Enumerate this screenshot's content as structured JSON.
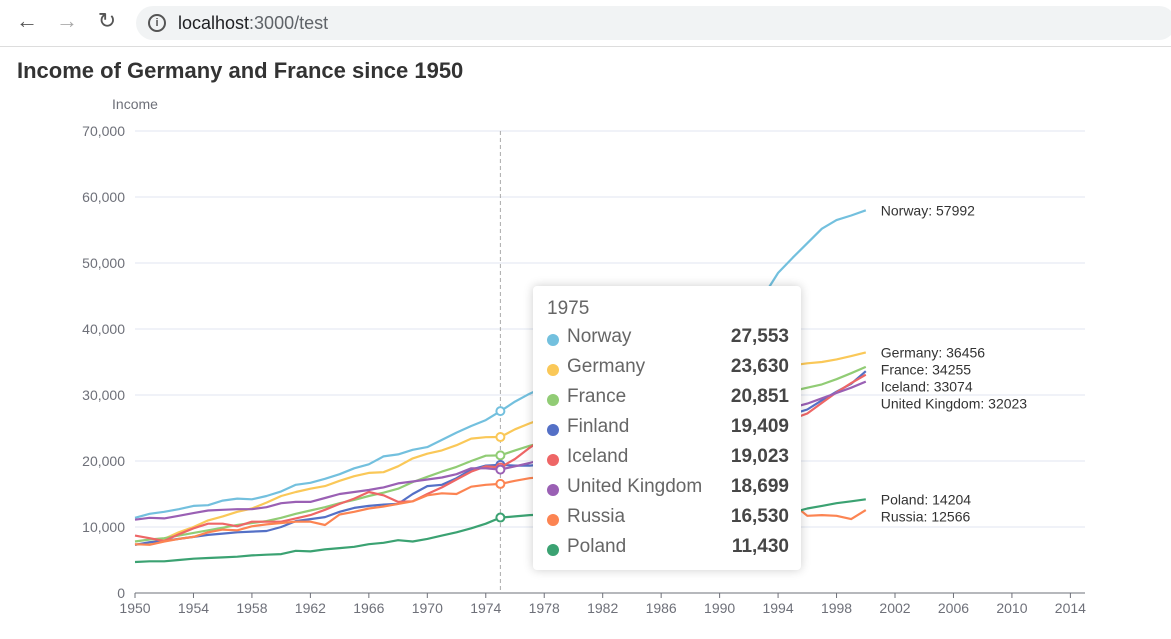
{
  "browser": {
    "url_host": "localhost",
    "url_path": ":3000/test"
  },
  "chart_data": {
    "type": "line",
    "title": "Income of Germany and France since 1950",
    "ylabel": "Income",
    "xlabel": "",
    "x_start": 1950,
    "x_end": 2015,
    "x_tick_labels": [
      "1950",
      "1954",
      "1958",
      "1962",
      "1966",
      "1970",
      "1974",
      "1978",
      "1982",
      "1986",
      "1990",
      "1994",
      "1998",
      "2002",
      "2006",
      "2010",
      "2014"
    ],
    "y_tick_labels": [
      "0",
      "10,000",
      "20,000",
      "30,000",
      "40,000",
      "50,000",
      "60,000",
      "70,000"
    ],
    "ylim": [
      0,
      70000
    ],
    "grid": true,
    "series": [
      {
        "name": "Norway",
        "color": "#73c0de",
        "end_label": "Norway: 57992",
        "values": [
          11400,
          12000,
          12300,
          12700,
          13200,
          13300,
          14000,
          14300,
          14200,
          14700,
          15400,
          16400,
          16700,
          17300,
          18000,
          18900,
          19500,
          20700,
          21000,
          21700,
          22100,
          23200,
          24300,
          25300,
          26200,
          27553,
          29000,
          30200,
          31200,
          32000,
          32800,
          33500,
          34000,
          34800,
          35500,
          36200,
          37000,
          37800,
          38300,
          38700,
          39200,
          40500,
          42000,
          45000,
          48500,
          50800,
          53000,
          55200,
          56500,
          57200,
          57992
        ]
      },
      {
        "name": "Germany",
        "color": "#fac858",
        "end_label": "Germany: 36456",
        "values": [
          7300,
          7600,
          8200,
          9200,
          10000,
          11000,
          11600,
          12300,
          12800,
          13700,
          14700,
          15300,
          15800,
          16200,
          17000,
          17700,
          18200,
          18300,
          19200,
          20400,
          21100,
          21600,
          22400,
          23400,
          23600,
          23630,
          24800,
          25700,
          26500,
          27200,
          27700,
          27800,
          27900,
          28400,
          29000,
          29700,
          30300,
          30900,
          31600,
          32300,
          33000,
          33500,
          33700,
          33400,
          34000,
          34500,
          34800,
          35000,
          35400,
          35900,
          36456
        ]
      },
      {
        "name": "France",
        "color": "#91cc75",
        "end_label": "France: 34255",
        "values": [
          7800,
          8100,
          8300,
          8700,
          9100,
          9500,
          9900,
          10300,
          10600,
          10900,
          11400,
          12000,
          12500,
          13000,
          13600,
          14100,
          14700,
          15200,
          15800,
          16800,
          17600,
          18400,
          19100,
          20000,
          20800,
          20851,
          21600,
          22300,
          22900,
          23700,
          24000,
          24200,
          24500,
          24700,
          25200,
          25800,
          26300,
          27000,
          28000,
          28800,
          29300,
          29500,
          29700,
          29600,
          30100,
          30600,
          31100,
          31600,
          32400,
          33300,
          34255
        ]
      },
      {
        "name": "Finland",
        "color": "#5470c6",
        "end_label": "",
        "values": [
          7300,
          7700,
          7900,
          8200,
          8500,
          8800,
          9000,
          9200,
          9300,
          9400,
          10000,
          10900,
          11200,
          11500,
          12300,
          12900,
          13200,
          13400,
          13500,
          15000,
          16200,
          16400,
          17400,
          18700,
          19300,
          19409,
          19300,
          19300,
          19500,
          20500,
          21500,
          22000,
          22300,
          22800,
          23500,
          24000,
          24500,
          25300,
          26400,
          27300,
          27400,
          25800,
          25200,
          25200,
          26200,
          27100,
          27800,
          29200,
          30500,
          31700,
          33600
        ]
      },
      {
        "name": "Iceland",
        "color": "#ee6666",
        "end_label": "Iceland: 33074",
        "values": [
          8700,
          8300,
          7900,
          8900,
          9800,
          10500,
          10500,
          10100,
          10800,
          10800,
          10800,
          11300,
          11800,
          12600,
          13500,
          14300,
          15300,
          14800,
          13800,
          13900,
          15000,
          16000,
          17200,
          18400,
          19200,
          19023,
          20300,
          22000,
          23500,
          24200,
          24600,
          24800,
          24400,
          23400,
          23500,
          24000,
          25000,
          26300,
          26000,
          25800,
          26100,
          26000,
          25200,
          25300,
          26100,
          26400,
          27200,
          28800,
          30400,
          31800,
          33074
        ]
      },
      {
        "name": "United Kingdom",
        "color": "#9a60b4",
        "end_label": "United Kingdom: 32023",
        "values": [
          11100,
          11400,
          11300,
          11700,
          12100,
          12500,
          12600,
          12700,
          12700,
          13000,
          13600,
          13800,
          13800,
          14400,
          15000,
          15300,
          15600,
          16000,
          16600,
          16900,
          17200,
          17500,
          18000,
          18900,
          18900,
          18699,
          19200,
          19700,
          20300,
          20800,
          20500,
          20300,
          20700,
          21400,
          22000,
          22800,
          23500,
          24500,
          25600,
          26100,
          26200,
          25800,
          25800,
          26400,
          27400,
          28100,
          28700,
          29500,
          30300,
          31100,
          32023
        ]
      },
      {
        "name": "Russia",
        "color": "#fc8452",
        "end_label": "Russia: 12566",
        "values": [
          7400,
          7300,
          7800,
          8200,
          8500,
          9200,
          9600,
          9500,
          10100,
          10400,
          10600,
          10800,
          10800,
          10300,
          11900,
          12300,
          12800,
          13100,
          13500,
          13900,
          14800,
          15100,
          15000,
          16100,
          16400,
          16530,
          17000,
          17400,
          17600,
          17700,
          17900,
          18000,
          18200,
          18500,
          18800,
          19000,
          19200,
          19500,
          19900,
          19800,
          19400,
          18200,
          16200,
          15600,
          14100,
          13500,
          11700,
          11800,
          11700,
          11200,
          12566
        ]
      },
      {
        "name": "Poland",
        "color": "#3ba272",
        "end_label": "Poland: 14204",
        "values": [
          4700,
          4800,
          4800,
          5000,
          5200,
          5300,
          5400,
          5500,
          5700,
          5800,
          5900,
          6400,
          6300,
          6600,
          6800,
          7000,
          7400,
          7600,
          8000,
          7800,
          8200,
          8700,
          9200,
          9800,
          10500,
          11430,
          11600,
          11800,
          11900,
          12000,
          11800,
          11000,
          10800,
          11100,
          11600,
          11900,
          12100,
          12000,
          12400,
          12500,
          11300,
          10600,
          10600,
          11000,
          11500,
          12200,
          12800,
          13200,
          13600,
          13900,
          14204
        ]
      }
    ],
    "tooltip": {
      "year": "1975",
      "year_value": 1975,
      "rows": [
        {
          "name": "Norway",
          "value": "27,553",
          "color": "#73c0de"
        },
        {
          "name": "Germany",
          "value": "23,630",
          "color": "#fac858"
        },
        {
          "name": "France",
          "value": "20,851",
          "color": "#91cc75"
        },
        {
          "name": "Finland",
          "value": "19,409",
          "color": "#5470c6"
        },
        {
          "name": "Iceland",
          "value": "19,023",
          "color": "#ee6666"
        },
        {
          "name": "United Kingdom",
          "value": "18,699",
          "color": "#9a60b4"
        },
        {
          "name": "Russia",
          "value": "16,530",
          "color": "#fc8452"
        },
        {
          "name": "Poland",
          "value": "11,430",
          "color": "#3ba272"
        }
      ]
    }
  }
}
